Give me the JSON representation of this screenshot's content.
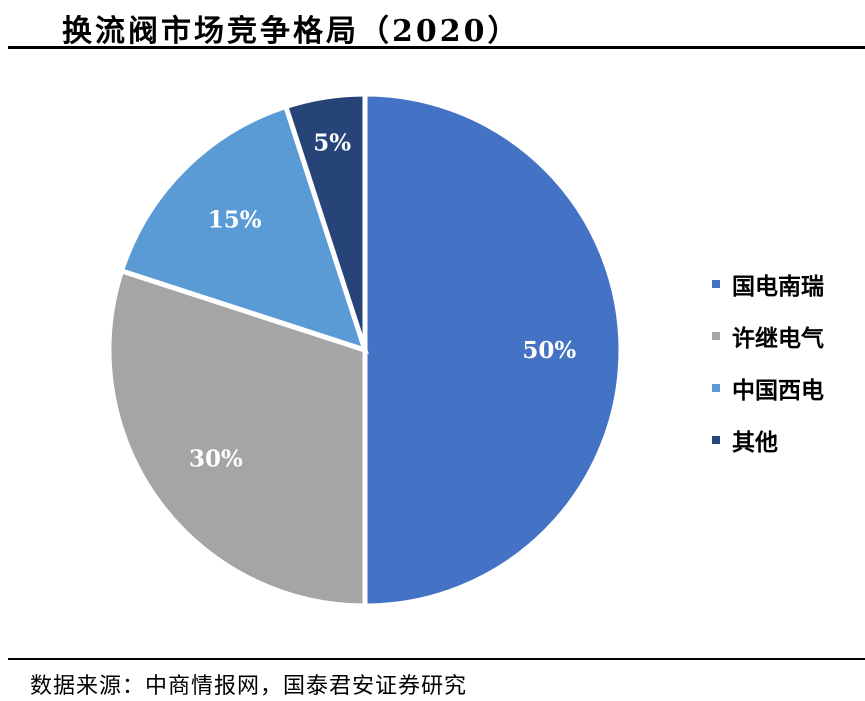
{
  "chart_data": {
    "type": "pie",
    "title": "换流阀市场竞争格局（2020）",
    "categories": [
      "国电南瑞",
      "许继电气",
      "中国西电",
      "其他"
    ],
    "values": [
      50,
      30,
      15,
      5
    ],
    "labels": [
      "50%",
      "30%",
      "15%",
      "5%"
    ],
    "colors": [
      "#4472C4",
      "#A5A5A5",
      "#5B9BD5",
      "#264478"
    ],
    "start_angle": "12 o'clock",
    "direction": "clockwise",
    "legend_position": "right"
  },
  "source": "数据来源：中商情报网，国泰君安证券研究"
}
